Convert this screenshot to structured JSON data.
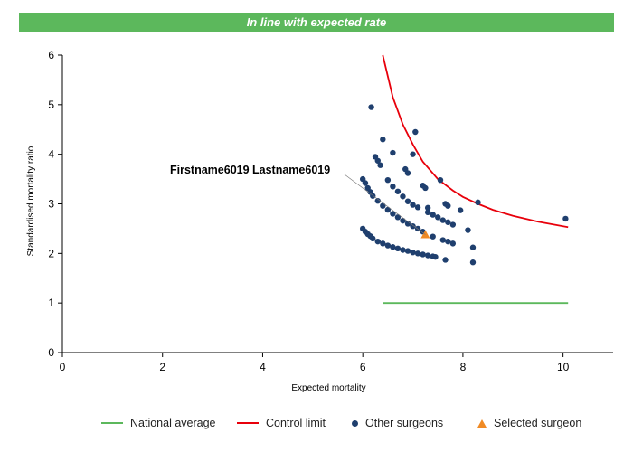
{
  "banner": {
    "text": "In line with expected rate",
    "color": "#5cb85c"
  },
  "chart_data": {
    "type": "scatter",
    "title": "",
    "xlabel": "Expected mortality",
    "ylabel": "Standardised mortality ratio",
    "xlim": [
      0,
      11
    ],
    "ylim": [
      0,
      6
    ],
    "x_ticks": [
      0,
      2,
      4,
      6,
      8,
      10
    ],
    "y_ticks": [
      0,
      1,
      2,
      3,
      4,
      5,
      6
    ],
    "grid": false,
    "legend_position": "bottom",
    "annotation": {
      "text": "Firstname6019 Lastname6019",
      "x": 7.25,
      "y": 2.38
    },
    "series": [
      {
        "name": "National average",
        "kind": "line",
        "color": "#5cb85c",
        "points": [
          [
            6.4,
            1.0
          ],
          [
            10.1,
            1.0
          ]
        ]
      },
      {
        "name": "Control limit",
        "kind": "line",
        "color": "#e8000b",
        "points": [
          [
            6.4,
            6.0
          ],
          [
            6.6,
            5.15
          ],
          [
            6.8,
            4.6
          ],
          [
            7.0,
            4.2
          ],
          [
            7.2,
            3.85
          ],
          [
            7.5,
            3.5
          ],
          [
            7.8,
            3.27
          ],
          [
            8.0,
            3.14
          ],
          [
            8.3,
            3.0
          ],
          [
            8.6,
            2.88
          ],
          [
            9.0,
            2.76
          ],
          [
            9.5,
            2.64
          ],
          [
            10.1,
            2.53
          ]
        ]
      },
      {
        "name": "Other surgeons",
        "kind": "scatter",
        "color": "#1f3f6e",
        "points": [
          [
            6.0,
            2.5
          ],
          [
            6.05,
            2.44
          ],
          [
            6.1,
            2.39
          ],
          [
            6.15,
            2.35
          ],
          [
            6.2,
            2.3
          ],
          [
            6.3,
            2.24
          ],
          [
            6.4,
            2.2
          ],
          [
            6.5,
            2.16
          ],
          [
            6.6,
            2.13
          ],
          [
            6.7,
            2.1
          ],
          [
            6.8,
            2.07
          ],
          [
            6.9,
            2.05
          ],
          [
            7.0,
            2.02
          ],
          [
            7.1,
            2.0
          ],
          [
            7.2,
            1.98
          ],
          [
            7.3,
            1.96
          ],
          [
            7.4,
            1.94
          ],
          [
            7.45,
            1.93
          ],
          [
            6.0,
            3.5
          ],
          [
            6.05,
            3.42
          ],
          [
            6.1,
            3.32
          ],
          [
            6.15,
            3.24
          ],
          [
            6.2,
            3.16
          ],
          [
            6.3,
            3.06
          ],
          [
            6.4,
            2.96
          ],
          [
            6.5,
            2.88
          ],
          [
            6.6,
            2.8
          ],
          [
            6.7,
            2.73
          ],
          [
            6.8,
            2.66
          ],
          [
            6.9,
            2.6
          ],
          [
            7.0,
            2.55
          ],
          [
            7.1,
            2.5
          ],
          [
            7.2,
            2.44
          ],
          [
            7.4,
            2.34
          ],
          [
            7.6,
            2.27
          ],
          [
            7.7,
            2.24
          ],
          [
            7.8,
            2.2
          ],
          [
            6.25,
            3.95
          ],
          [
            6.3,
            3.87
          ],
          [
            6.35,
            3.78
          ],
          [
            6.5,
            3.48
          ],
          [
            6.6,
            3.35
          ],
          [
            6.7,
            3.25
          ],
          [
            6.8,
            3.15
          ],
          [
            6.9,
            3.05
          ],
          [
            7.0,
            2.98
          ],
          [
            7.1,
            2.93
          ],
          [
            7.3,
            2.83
          ],
          [
            7.4,
            2.78
          ],
          [
            7.5,
            2.73
          ],
          [
            7.6,
            2.67
          ],
          [
            7.7,
            2.63
          ],
          [
            7.8,
            2.58
          ],
          [
            6.17,
            4.95
          ],
          [
            6.4,
            4.3
          ],
          [
            6.6,
            4.03
          ],
          [
            6.85,
            3.7
          ],
          [
            6.9,
            3.62
          ],
          [
            7.0,
            4.0
          ],
          [
            7.05,
            4.45
          ],
          [
            7.2,
            3.37
          ],
          [
            7.25,
            3.32
          ],
          [
            7.3,
            2.92
          ],
          [
            7.55,
            3.48
          ],
          [
            7.65,
            3.0
          ],
          [
            7.7,
            2.96
          ],
          [
            7.95,
            2.87
          ],
          [
            8.1,
            2.47
          ],
          [
            8.2,
            2.12
          ],
          [
            8.2,
            1.82
          ],
          [
            8.3,
            3.03
          ],
          [
            7.65,
            1.87
          ],
          [
            10.05,
            2.7
          ]
        ]
      },
      {
        "name": "Selected surgeon",
        "kind": "scatter",
        "color": "#f08a24",
        "points": [
          [
            7.25,
            2.38
          ]
        ]
      }
    ]
  }
}
